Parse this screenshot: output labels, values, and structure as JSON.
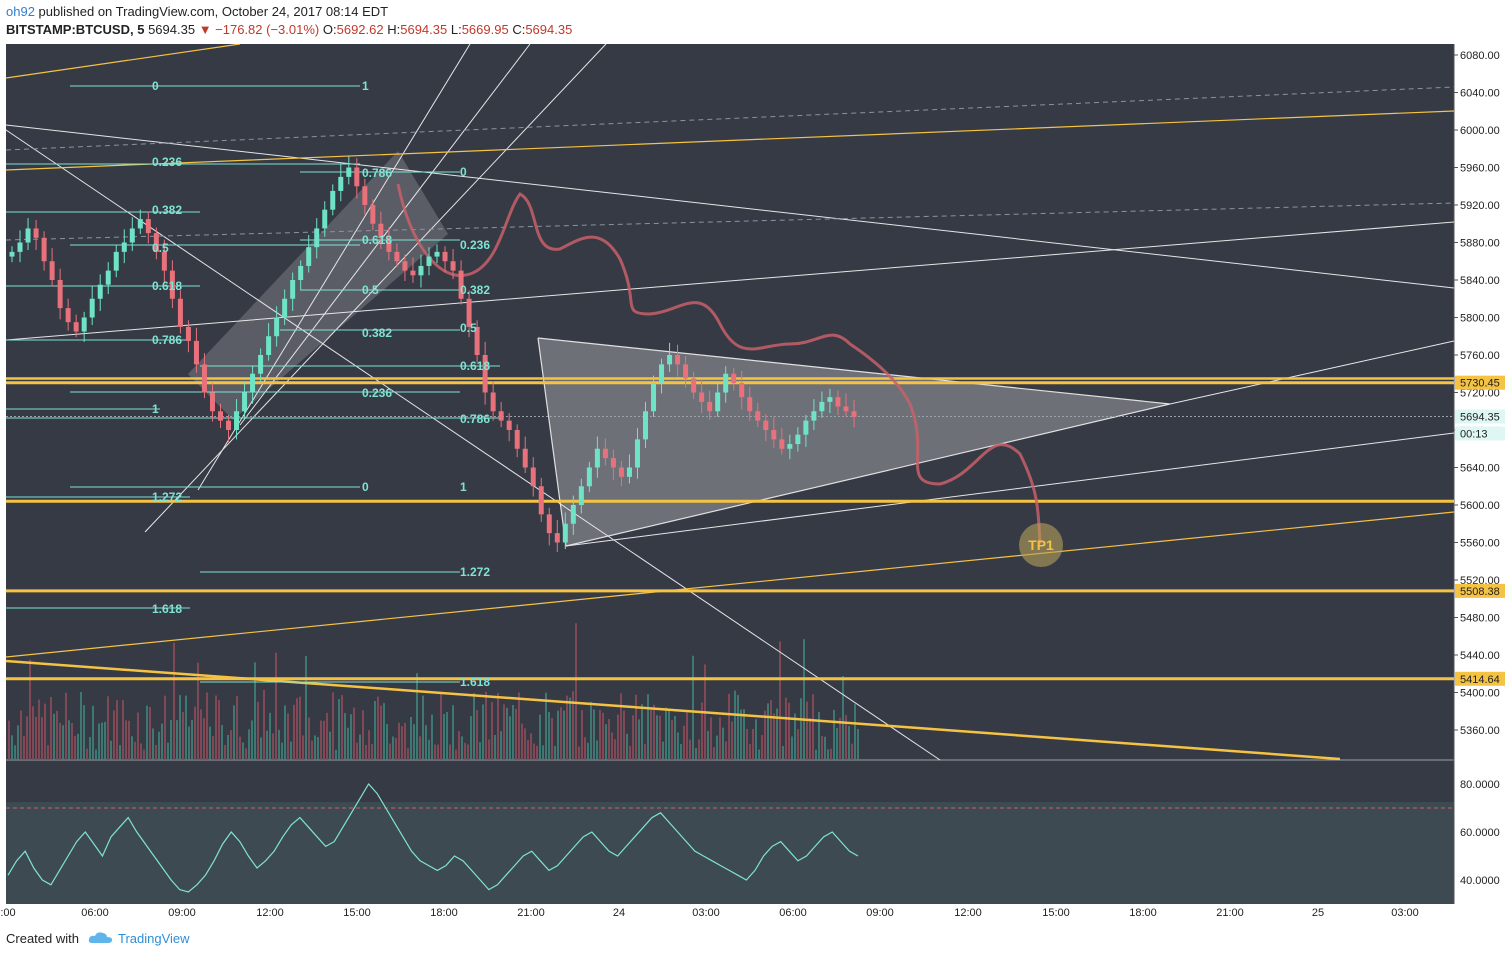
{
  "header": {
    "author": "oh92",
    "published_text": "published on TradingView.com, October 24, 2017 08:14 EDT",
    "symbol": "BITSTAMP:BTCUSD, 5",
    "last": "5694.35",
    "change": "▼ −176.82 (−3.01%)",
    "o_label": "O:",
    "o": "5692.62",
    "h_label": "H:",
    "h": "5694.35",
    "l_label": "L:",
    "l": "5669.95",
    "c_label": "C:",
    "c": "5694.35"
  },
  "footer": {
    "created": "Created with",
    "brand": "TradingView"
  },
  "colors": {
    "background": "#363a45",
    "candle_up": "#6fe3c6",
    "candle_down": "#e8717c",
    "level": "#f5c343",
    "fib": "#7fe3d3",
    "drawing": "#c8606a",
    "rsi": "#7fe3d3"
  },
  "chart_data": {
    "type": "candlestick",
    "symbol": "BITSTAMP:BTCUSD",
    "interval": "5",
    "ylim": [
      5320,
      6090
    ],
    "y_ticks": [
      "6080.00",
      "6040.00",
      "6000.00",
      "5960.00",
      "5920.00",
      "5880.00",
      "5840.00",
      "5800.00",
      "5760.00",
      "5720.00",
      "5680.00",
      "5640.00",
      "5600.00",
      "5560.00",
      "5520.00",
      "5480.00",
      "5440.00",
      "5400.00",
      "5360.00"
    ],
    "x_ticks": [
      ":00",
      "06:00",
      "09:00",
      "12:00",
      "15:00",
      "18:00",
      "21:00",
      "24",
      "03:00",
      "06:00",
      "09:00",
      "12:00",
      "15:00",
      "18:00",
      "21:00",
      "25",
      "03:00"
    ],
    "price_labels": [
      {
        "value": "5730.45",
        "kind": "level"
      },
      {
        "value": "5694.35",
        "kind": "last"
      },
      {
        "value": "00:13",
        "kind": "countdown"
      },
      {
        "value": "5508.38",
        "kind": "level"
      },
      {
        "value": "5414.64",
        "kind": "level"
      }
    ],
    "horizontal_levels": [
      5730.45,
      5604,
      5508.38,
      5414.64
    ],
    "close_series": [
      5870,
      5880,
      5895,
      5885,
      5860,
      5840,
      5810,
      5795,
      5785,
      5800,
      5820,
      5835,
      5850,
      5870,
      5880,
      5895,
      5905,
      5890,
      5870,
      5850,
      5820,
      5790,
      5775,
      5750,
      5720,
      5700,
      5690,
      5680,
      5700,
      5720,
      5740,
      5760,
      5780,
      5800,
      5820,
      5840,
      5855,
      5875,
      5895,
      5915,
      5935,
      5950,
      5960,
      5940,
      5920,
      5900,
      5885,
      5870,
      5860,
      5850,
      5845,
      5855,
      5865,
      5870,
      5860,
      5850,
      5820,
      5790,
      5760,
      5720,
      5700,
      5690,
      5680,
      5660,
      5640,
      5620,
      5590,
      5570,
      5560,
      5580,
      5600,
      5620,
      5640,
      5660,
      5650,
      5640,
      5630,
      5640,
      5670,
      5700,
      5730,
      5750,
      5760,
      5750,
      5735,
      5720,
      5710,
      5700,
      5720,
      5740,
      5730,
      5715,
      5700,
      5690,
      5680,
      5670,
      5660,
      5665,
      5675,
      5690,
      5700,
      5710,
      5715,
      5705,
      5700,
      5694
    ],
    "fib_labels": [
      {
        "text": "0"
      },
      {
        "text": "1"
      },
      {
        "text": "0.236"
      },
      {
        "text": "0.382"
      },
      {
        "text": "0.5"
      },
      {
        "text": "0.618"
      },
      {
        "text": "0.786"
      },
      {
        "text": "1"
      },
      {
        "text": "1.272"
      },
      {
        "text": "1.618"
      },
      {
        "text": "0.786"
      },
      {
        "text": "0"
      },
      {
        "text": "0.618"
      },
      {
        "text": "0.236"
      },
      {
        "text": "0.5"
      },
      {
        "text": "0.382"
      },
      {
        "text": "0.382"
      },
      {
        "text": "0.5"
      },
      {
        "text": "0.618"
      },
      {
        "text": "0.236"
      },
      {
        "text": "0.786"
      },
      {
        "text": "0"
      },
      {
        "text": "1"
      },
      {
        "text": "1.272"
      },
      {
        "text": "1.618"
      }
    ],
    "annotation": "TP1",
    "rsi": {
      "y_ticks": [
        "80.0000",
        "60.0000",
        "40.0000"
      ],
      "ylim": [
        30,
        90
      ],
      "overbought": 70,
      "values": [
        42,
        48,
        52,
        45,
        40,
        38,
        44,
        50,
        56,
        60,
        55,
        50,
        58,
        62,
        66,
        60,
        55,
        50,
        45,
        40,
        36,
        35,
        38,
        42,
        48,
        55,
        60,
        56,
        50,
        45,
        48,
        52,
        58,
        63,
        66,
        62,
        58,
        54,
        56,
        62,
        68,
        74,
        80,
        76,
        70,
        64,
        58,
        52,
        48,
        46,
        44,
        46,
        50,
        48,
        44,
        40,
        36,
        38,
        42,
        46,
        50,
        52,
        48,
        44,
        46,
        50,
        54,
        58,
        60,
        56,
        52,
        50,
        54,
        58,
        62,
        66,
        68,
        64,
        60,
        56,
        52,
        50,
        48,
        46,
        44,
        42,
        40,
        44,
        50,
        54,
        56,
        52,
        48,
        50,
        54,
        58,
        60,
        56,
        52,
        50
      ]
    }
  }
}
